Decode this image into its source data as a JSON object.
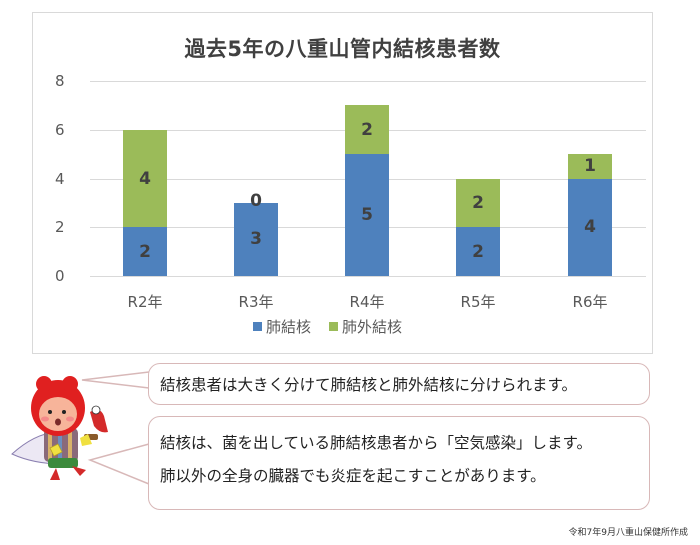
{
  "chart_data": {
    "type": "bar",
    "stacked": true,
    "title": "過去5年の八重山管内結核患者数",
    "categories": [
      "R2年",
      "R3年",
      "R4年",
      "R5年",
      "R6年"
    ],
    "series": [
      {
        "name": "肺結核",
        "color": "#4e81bd",
        "values": [
          2,
          3,
          5,
          2,
          4
        ]
      },
      {
        "name": "肺外結核",
        "color": "#9bbb59",
        "values": [
          4,
          0,
          2,
          2,
          1
        ]
      }
    ],
    "xlabel": "",
    "ylabel": "",
    "ylim": [
      0,
      8
    ],
    "yticks": [
      "0",
      "2",
      "4",
      "6",
      "8"
    ],
    "grid": true,
    "legend_position": "bottom",
    "data_labels": true
  },
  "bubbles": {
    "first": "結核患者は大きく分けて肺結核と肺外結核に分けられます。",
    "second_line1": "結核は、菌を出している肺結核患者から「空気感染」します。",
    "second_line2": "肺以外の全身の臓器でも炎症を起こすことがあります。"
  },
  "mascot": {
    "icon": "mascot-character-illustration"
  },
  "credit": "令和7年9月八重山保健所作成"
}
